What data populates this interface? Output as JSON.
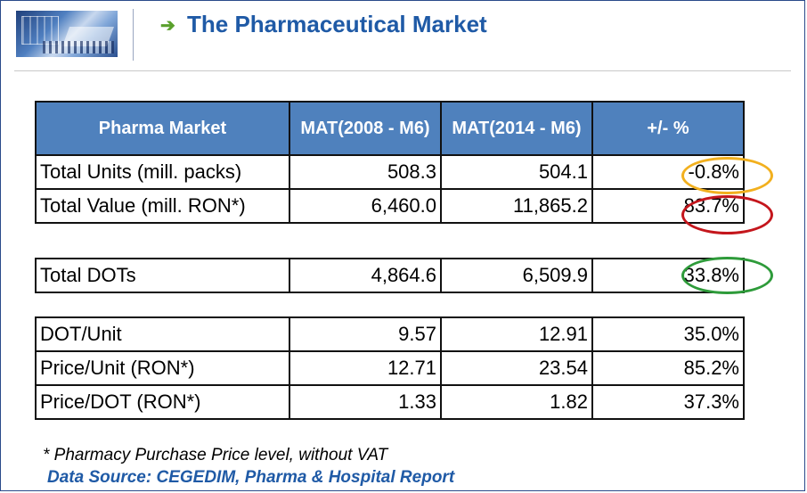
{
  "header": {
    "title": "The Pharmaceutical Market"
  },
  "table1": {
    "headers": [
      "Pharma  Market",
      "MAT(2008 - M6)",
      "MAT(2014 - M6)",
      "+/- %"
    ],
    "rows": [
      [
        "Total Units (mill. packs)",
        "508.3",
        "504.1",
        "-0.8%"
      ],
      [
        "Total Value (mill. RON*)",
        "6,460.0",
        "11,865.2",
        "83.7%"
      ]
    ]
  },
  "table2": {
    "rows": [
      [
        "Total DOTs",
        "4,864.6",
        "6,509.9",
        "33.8%"
      ]
    ]
  },
  "table3": {
    "rows": [
      [
        "DOT/Unit",
        "9.57",
        "12.91",
        "35.0%"
      ],
      [
        "Price/Unit (RON*)",
        "12.71",
        "23.54",
        "85.2%"
      ],
      [
        "Price/DOT (RON*)",
        "1.33",
        "1.82",
        "37.3%"
      ]
    ]
  },
  "footnotes": {
    "note": "* Pharmacy Purchase Price level, without VAT",
    "source": "Data Source: CEGEDIM, Pharma & Hospital Report"
  },
  "colors": {
    "header_fill": "#4f81bd",
    "title": "#1f5aa6",
    "oval_orange": "#f2b01e",
    "oval_red": "#c4161c",
    "oval_green": "#2e9b3a"
  }
}
